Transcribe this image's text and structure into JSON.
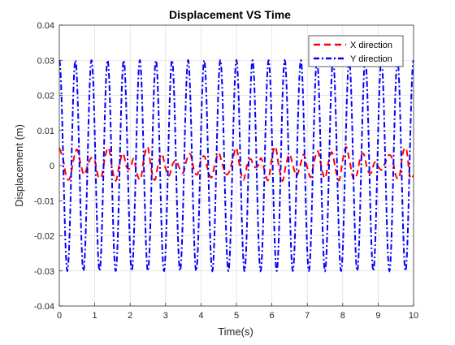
{
  "chart_data": {
    "type": "line",
    "title": "Displacement VS Time",
    "xlabel": "Time(s)",
    "ylabel": "Displacement (m)",
    "xlim": [
      0,
      10
    ],
    "ylim": [
      -0.04,
      0.04
    ],
    "xticks": [
      0,
      1,
      2,
      3,
      4,
      5,
      6,
      7,
      8,
      9,
      10
    ],
    "xtick_labels": [
      "0",
      "1",
      "2",
      "3",
      "4",
      "5",
      "6",
      "7",
      "8",
      "9",
      "10"
    ],
    "yticks": [
      -0.04,
      -0.03,
      -0.02,
      -0.01,
      0,
      0.01,
      0.02,
      0.03,
      0.04
    ],
    "ytick_labels": [
      "-0.04",
      "-0.03",
      "-0.02",
      "-0.01",
      "0",
      "0.01",
      "0.02",
      "0.03",
      "0.04"
    ],
    "grid": true,
    "legend_position": "top-right",
    "series": [
      {
        "name": "X direction",
        "color": "#ff0000",
        "dash": "dashed",
        "x": [
          0,
          0.1,
          0.2,
          0.3,
          0.4,
          0.5,
          0.6,
          0.7,
          0.8,
          0.9,
          1.0,
          1.1,
          1.2,
          1.3,
          1.4,
          1.5,
          1.6,
          1.7,
          1.8,
          1.9,
          2.0,
          2.1,
          2.2,
          2.3,
          2.4,
          2.5,
          2.6,
          2.7,
          2.8,
          2.9,
          3.0,
          3.1,
          3.2,
          3.3,
          3.4,
          3.5,
          3.6,
          3.7,
          3.8,
          3.9,
          4.0,
          4.1,
          4.2,
          4.3,
          4.4,
          4.5,
          4.6,
          4.7,
          4.8,
          4.9,
          5.0,
          5.1,
          5.2,
          5.3,
          5.4,
          5.5,
          5.6,
          5.7,
          5.8,
          5.9,
          6.0,
          6.1,
          6.2,
          6.3,
          6.4,
          6.5,
          6.6,
          6.7,
          6.8,
          6.9,
          7.0,
          7.1,
          7.2,
          7.3,
          7.4,
          7.5,
          7.6,
          7.7,
          7.8,
          7.9,
          8.0,
          8.1,
          8.2,
          8.3,
          8.4,
          8.5,
          8.6,
          8.7,
          8.8,
          8.9,
          9.0,
          9.1,
          9.2,
          9.3,
          9.4,
          9.5,
          9.6,
          9.7,
          9.8,
          9.9,
          10.0
        ],
        "y": [
          0.005,
          0.0021,
          -0.0032,
          -0.0036,
          0.0016,
          0.0046,
          0.0006,
          -0.0026,
          0.0,
          0.0022,
          0.0015,
          -0.0031,
          -0.0028,
          0.0029,
          0.0049,
          -0.0013,
          -0.0043,
          0.0006,
          0.0035,
          -0.0004,
          -0.0007,
          0.0019,
          -0.0026,
          -0.0037,
          0.0027,
          0.0052,
          -0.0012,
          -0.0041,
          0.0008,
          0.0033,
          -0.0008,
          -0.0029,
          0.0004,
          0.0014,
          -0.0009,
          -0.002,
          0.0018,
          0.0033,
          -0.0011,
          -0.0025,
          0.0015,
          0.0026,
          -0.0014,
          -0.0034,
          0.0008,
          0.0036,
          0.0005,
          -0.0024,
          -0.0017,
          0.0021,
          0.005,
          -0.0006,
          -0.0041,
          0.0,
          0.0019,
          -0.0003,
          -0.0002,
          0.0021,
          -0.0018,
          -0.0041,
          0.0021,
          0.0054,
          -0.0004,
          -0.0044,
          0.0003,
          0.0032,
          -0.0002,
          -0.0029,
          0.0,
          0.0032,
          -0.0006,
          -0.0033,
          0.0015,
          0.0041,
          -0.0004,
          -0.0036,
          0.001,
          0.0038,
          -0.0012,
          -0.0042,
          0.0016,
          0.0053,
          0.001,
          -0.0037,
          -0.0025,
          0.0023,
          0.0032,
          -0.0012,
          -0.0021,
          0.0009,
          -0.0003,
          -0.0012,
          0.0008,
          0.003,
          0.0019,
          -0.0029,
          -0.0032,
          0.0036,
          0.0045,
          -0.0033,
          -0.0028
        ]
      },
      {
        "name": "Y direction",
        "color": "#0000ff",
        "dash": "dashdot",
        "function": {
          "kind": "cosine",
          "amplitude": 0.03,
          "frequency_hz": 2.2,
          "phase": 0,
          "t_start": 0,
          "t_end": 10
        }
      }
    ]
  }
}
